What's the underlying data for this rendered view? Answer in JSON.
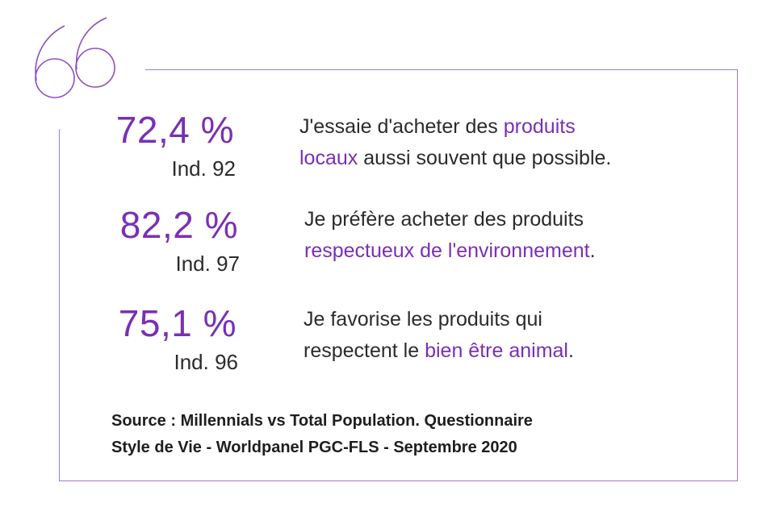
{
  "colors": {
    "accent": "#7a2fb5",
    "frame": "#9d7fc4",
    "text": "#2b2b2b"
  },
  "icons": {
    "quote": "quote-marks-icon"
  },
  "stats": [
    {
      "value": "72,4 %",
      "index": "Ind. 92",
      "text_before": "J'essaie d'acheter des ",
      "text_highlight_1": "produits",
      "text_highlight_2": "locaux",
      "text_after": " aussi souvent que possible."
    },
    {
      "value": "82,2 %",
      "index": "Ind. 97",
      "text_before": "Je préfère acheter des produits",
      "text_highlight": "respectueux de l'environnement",
      "text_after": "."
    },
    {
      "value": "75,1 %",
      "index": "Ind. 96",
      "text_before": "Je favorise les produits qui",
      "text_line2_before": "respectent le ",
      "text_highlight": "bien être animal",
      "text_after": "."
    }
  ],
  "source": {
    "line1": "Source : Millennials vs Total Population. Questionnaire",
    "line2": "Style de Vie - Worldpanel PGC-FLS - Septembre 2020"
  }
}
